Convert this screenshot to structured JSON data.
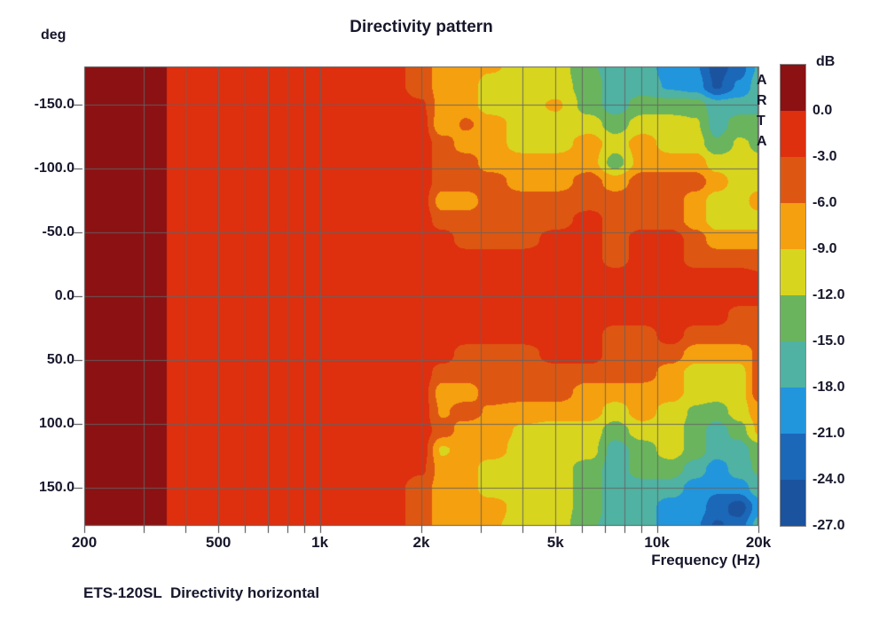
{
  "title": "Directivity pattern",
  "footer": "ETS-120SL  Directivity horizontal",
  "watermark": "ARTA",
  "text_color": "#17172c",
  "grid_color": "rgba(100,100,100,0.9)",
  "x_axis": {
    "label": "Frequency (Hz)",
    "scale": "log",
    "range_hz": [
      200,
      20000
    ],
    "tick_labels": [
      "200",
      "500",
      "1k",
      "2k",
      "5k",
      "10k",
      "20k"
    ],
    "tick_values": [
      200,
      500,
      1000,
      2000,
      5000,
      10000,
      20000
    ],
    "gridline_values": [
      200,
      300,
      400,
      500,
      600,
      700,
      800,
      900,
      1000,
      2000,
      3000,
      4000,
      5000,
      6000,
      7000,
      8000,
      9000,
      10000,
      20000
    ]
  },
  "y_axis": {
    "label": "deg",
    "range_deg": [
      -180,
      180
    ],
    "tick_labels": [
      "-150.0",
      "-100.0",
      "-50.0",
      "0.0",
      "50.0",
      "100.0",
      "150.0"
    ],
    "tick_values": [
      -150,
      -100,
      -50,
      0,
      50,
      100,
      150
    ]
  },
  "colorbar": {
    "label": "dB",
    "tick_labels": [
      "0.0",
      "-3.0",
      "-6.0",
      "-9.0",
      "-12.0",
      "-15.0",
      "-18.0",
      "-21.0",
      "-24.0",
      "-27.0"
    ],
    "tick_values": [
      0,
      -3,
      -6,
      -9,
      -12,
      -15,
      -18,
      -21,
      -24,
      -27
    ],
    "band_colors": [
      "#8b1113",
      "#de2f0f",
      "#dd5712",
      "#f5a00f",
      "#d8d51f",
      "#6ab45e",
      "#4fb2a2",
      "#2196dd",
      "#1b67b8",
      "#1b539e"
    ],
    "band_step_db": 3,
    "top_db": 3,
    "bottom_db": -27
  },
  "chart_data": {
    "type": "heatmap",
    "title": "Directivity pattern",
    "xlabel": "Frequency (Hz)",
    "ylabel": "deg",
    "zlabel": "dB",
    "x_range": [
      200,
      20000
    ],
    "y_range": [
      -180,
      180
    ],
    "z_bands_db": [
      0,
      -3,
      -6,
      -9,
      -12,
      -15,
      -18,
      -21,
      -24,
      -27
    ],
    "x_frequencies_hz": [
      200,
      250,
      320,
      400,
      500,
      640,
      800,
      1000,
      1300,
      1600,
      2000,
      2300,
      2700,
      3200,
      4000,
      5000,
      6300,
      7500,
      9000,
      11000,
      13000,
      15000,
      17500,
      20000
    ],
    "y_angles_deg": [
      -180,
      -165,
      -150,
      -135,
      -120,
      -105,
      -90,
      -75,
      -60,
      -45,
      -30,
      -15,
      0,
      15,
      30,
      45,
      60,
      75,
      90,
      105,
      120,
      135,
      150,
      165,
      180
    ],
    "values_db": [
      [
        1.5,
        1.5,
        0.8,
        -1.5,
        -1.5,
        -1.5,
        -1.5,
        -1.5,
        -1.5,
        -1.5,
        -4.5,
        -7.5,
        -7.5,
        -8.5,
        -10.5,
        -10.5,
        -14.5,
        -16.5,
        -16.5,
        -19.5,
        -20.5,
        -25.5,
        -22.5,
        -17.5
      ],
      [
        1.5,
        1.5,
        0.8,
        -1.5,
        -1.5,
        -1.5,
        -1.5,
        -1.5,
        -1.5,
        -1.5,
        -4.5,
        -7.5,
        -7.5,
        -10.5,
        -10.5,
        -10.5,
        -13.5,
        -16.5,
        -16.5,
        -18.5,
        -19.5,
        -24.5,
        -20.5,
        -16.5
      ],
      [
        1.5,
        1.5,
        0.8,
        -1.5,
        -1.5,
        -1.5,
        -1.5,
        -1.5,
        -1.5,
        -1.5,
        -2.5,
        -7.5,
        -7.5,
        -10.5,
        -10.5,
        -8.5,
        -13.5,
        -16.5,
        -13.5,
        -13.5,
        -13.5,
        -16.5,
        -16.5,
        -15.5
      ],
      [
        1.5,
        1.5,
        0.8,
        -1.5,
        -1.5,
        -1.5,
        -1.5,
        -1.5,
        -1.5,
        -1.5,
        -1.5,
        -8.5,
        -5.5,
        -7.5,
        -10.5,
        -10.5,
        -10.5,
        -13.5,
        -10.5,
        -10.5,
        -11.5,
        -16.5,
        -13.5,
        -14.5
      ],
      [
        1.5,
        1.5,
        0.8,
        -1.5,
        -1.5,
        -1.5,
        -1.5,
        -1.5,
        -1.5,
        -1.5,
        -1.5,
        -4.5,
        -7.5,
        -7.5,
        -10.5,
        -10.5,
        -7.5,
        -10.5,
        -7.5,
        -10.5,
        -10.5,
        -14.5,
        -11.5,
        -12.5
      ],
      [
        1.5,
        1.5,
        0.8,
        -1.5,
        -1.5,
        -1.5,
        -1.5,
        -1.5,
        -1.5,
        -1.5,
        -1.5,
        -4.5,
        -4.5,
        -7.5,
        -7.5,
        -7.5,
        -7.5,
        -13.5,
        -7.5,
        -7.5,
        -7.5,
        -10.5,
        -10.5,
        -11.5
      ],
      [
        1.5,
        1.5,
        0.8,
        -1.5,
        -1.5,
        -1.5,
        -1.5,
        -1.5,
        -1.5,
        -1.5,
        -1.5,
        -4.5,
        -4.5,
        -4.5,
        -7.5,
        -7.5,
        -4.5,
        -7.5,
        -4.5,
        -4.5,
        -4.5,
        -7.5,
        -10.5,
        -10.5
      ],
      [
        1.5,
        1.5,
        0.8,
        -1.5,
        -1.5,
        -1.5,
        -1.5,
        -1.5,
        -1.5,
        -1.5,
        -1.5,
        -7.5,
        -7.5,
        -4.5,
        -4.5,
        -4.5,
        -4.5,
        -4.5,
        -4.5,
        -4.5,
        -7.5,
        -10.5,
        -10.5,
        -7.5
      ],
      [
        1.5,
        1.5,
        0.8,
        -1.5,
        -1.5,
        -1.5,
        -1.5,
        -1.5,
        -1.5,
        -1.5,
        -1.5,
        -4.5,
        -4.5,
        -4.5,
        -4.5,
        -4.5,
        -1.5,
        -4.5,
        -4.5,
        -4.5,
        -7.5,
        -10.5,
        -10.5,
        -10.5
      ],
      [
        1.5,
        1.5,
        0.8,
        -1.5,
        -1.5,
        -1.5,
        -1.5,
        -1.5,
        -1.5,
        -1.5,
        -1.5,
        -1.5,
        -4.5,
        -4.5,
        -4.5,
        -1.5,
        -1.5,
        -4.5,
        -1.5,
        -1.5,
        -4.5,
        -7.5,
        -7.5,
        -7.5
      ],
      [
        1.5,
        1.5,
        0.8,
        -1.5,
        -1.5,
        -1.5,
        -1.5,
        -1.5,
        -1.5,
        -1.5,
        -1.5,
        -1.5,
        -1.5,
        -1.5,
        -1.5,
        -1.5,
        -1.5,
        -4.5,
        -1.5,
        -1.5,
        -4.5,
        -4.5,
        -4.5,
        -4.5
      ],
      [
        1.5,
        1.5,
        0.8,
        -1.5,
        -1.5,
        -1.5,
        -1.5,
        -1.5,
        -1.5,
        -1.5,
        -1.5,
        -1.5,
        -1.5,
        -1.5,
        -1.5,
        -1.5,
        -1.5,
        -1.5,
        -1.5,
        -1.5,
        -1.5,
        -1.5,
        -1.5,
        -2.5
      ],
      [
        1.5,
        1.5,
        0.8,
        -1.5,
        -1.5,
        -1.5,
        -1.5,
        -1.5,
        -1.5,
        -1.5,
        -1.5,
        -1.5,
        -1.5,
        -1.5,
        -1.5,
        -1.5,
        -1.5,
        -1.5,
        -1.5,
        -1.5,
        -1.5,
        -1.5,
        -1.5,
        -1.5
      ],
      [
        1.5,
        1.5,
        0.8,
        -1.5,
        -1.5,
        -1.5,
        -1.5,
        -1.5,
        -1.5,
        -1.5,
        -1.5,
        -1.5,
        -1.5,
        -1.5,
        -1.5,
        -1.5,
        -1.5,
        -1.5,
        -1.5,
        -1.5,
        -1.5,
        -1.5,
        -4.5,
        -4.5
      ],
      [
        1.5,
        1.5,
        0.8,
        -1.5,
        -1.5,
        -1.5,
        -1.5,
        -1.5,
        -1.5,
        -1.5,
        -1.5,
        -1.5,
        -1.5,
        -1.5,
        -1.5,
        -1.5,
        -1.5,
        -4.5,
        -4.5,
        -1.5,
        -4.5,
        -4.5,
        -4.5,
        -5.5
      ],
      [
        1.5,
        1.5,
        0.8,
        -1.5,
        -1.5,
        -1.5,
        -1.5,
        -1.5,
        -1.5,
        -1.5,
        -1.5,
        -1.5,
        -4.5,
        -4.5,
        -4.5,
        -1.5,
        -1.5,
        -4.5,
        -4.5,
        -4.5,
        -7.5,
        -7.5,
        -7.5,
        -5.5
      ],
      [
        1.5,
        1.5,
        0.8,
        -1.5,
        -1.5,
        -1.5,
        -1.5,
        -1.5,
        -1.5,
        -1.5,
        -1.5,
        -4.5,
        -4.5,
        -4.5,
        -4.5,
        -4.5,
        -4.5,
        -4.5,
        -4.5,
        -7.5,
        -10.5,
        -10.5,
        -10.5,
        -4.5
      ],
      [
        1.5,
        1.5,
        0.8,
        -1.5,
        -1.5,
        -1.5,
        -1.5,
        -1.5,
        -1.5,
        -1.5,
        -1.5,
        -7.5,
        -7.5,
        -4.5,
        -4.5,
        -4.5,
        -7.5,
        -7.5,
        -7.5,
        -7.5,
        -10.5,
        -10.5,
        -10.5,
        -4.5
      ],
      [
        1.5,
        1.5,
        0.8,
        -1.5,
        -1.5,
        -1.5,
        -1.5,
        -1.5,
        -1.5,
        -1.5,
        -1.5,
        -6.5,
        -4.5,
        -6.5,
        -7.5,
        -7.5,
        -7.5,
        -10.5,
        -7.5,
        -10.5,
        -12.5,
        -13.5,
        -10.5,
        -7.5
      ],
      [
        1.5,
        1.5,
        0.8,
        -1.5,
        -1.5,
        -1.5,
        -1.5,
        -1.5,
        -1.5,
        -1.5,
        -1.5,
        -4.5,
        -7.5,
        -7.5,
        -9.5,
        -10.5,
        -10.5,
        -13.5,
        -10.5,
        -10.5,
        -13.5,
        -16.5,
        -13.5,
        -8.5
      ],
      [
        1.5,
        1.5,
        0.8,
        -1.5,
        -1.5,
        -1.5,
        -1.5,
        -1.5,
        -1.5,
        -1.5,
        -1.5,
        -9.5,
        -7.5,
        -7.5,
        -10.5,
        -10.5,
        -10.5,
        -16.5,
        -13.5,
        -10.5,
        -13.5,
        -16.5,
        -16.5,
        -13.5
      ],
      [
        1.5,
        1.5,
        0.8,
        -1.5,
        -1.5,
        -1.5,
        -1.5,
        -1.5,
        -1.5,
        -1.5,
        -2.5,
        -7.5,
        -7.5,
        -10.5,
        -10.5,
        -10.5,
        -13.5,
        -16.5,
        -13.5,
        -13.5,
        -16.5,
        -19.5,
        -16.5,
        -14.5
      ],
      [
        1.5,
        1.5,
        0.8,
        -1.5,
        -1.5,
        -1.5,
        -1.5,
        -1.5,
        -1.5,
        -1.5,
        -4.5,
        -7.5,
        -7.5,
        -10.5,
        -10.5,
        -10.5,
        -13.5,
        -16.5,
        -16.5,
        -16.5,
        -19.5,
        -20.5,
        -19.5,
        -16.5
      ],
      [
        1.5,
        1.5,
        0.8,
        -1.5,
        -1.5,
        -1.5,
        -1.5,
        -1.5,
        -1.5,
        -1.5,
        -4.5,
        -7.5,
        -7.5,
        -7.5,
        -10.5,
        -10.5,
        -13.5,
        -16.5,
        -16.5,
        -19.5,
        -19.5,
        -22.5,
        -25.5,
        -19.5
      ],
      [
        1.5,
        1.5,
        0.8,
        -1.5,
        -1.5,
        -1.5,
        -1.5,
        -1.5,
        -1.5,
        -1.5,
        -4.5,
        -7.5,
        -7.5,
        -8.5,
        -10.5,
        -10.5,
        -14.5,
        -16.5,
        -16.5,
        -19.5,
        -20.5,
        -24.5,
        -22.5,
        -16.5
      ]
    ]
  }
}
